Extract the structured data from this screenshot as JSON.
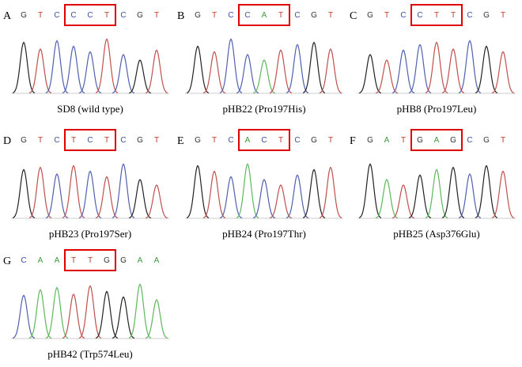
{
  "panels": [
    {
      "letter": "A",
      "bases": [
        "G",
        "T",
        "C",
        "C",
        "C",
        "T",
        "C",
        "G",
        "T"
      ],
      "caption": "SD8 (wild type)"
    },
    {
      "letter": "B",
      "bases": [
        "G",
        "T",
        "C",
        "C",
        "A",
        "T",
        "C",
        "G",
        "T"
      ],
      "caption": "pHB22 (Pro197His)"
    },
    {
      "letter": "C",
      "bases": [
        "G",
        "T",
        "C",
        "C",
        "T",
        "T",
        "C",
        "G",
        "T"
      ],
      "caption": "pHB8 (Pro197Leu)"
    },
    {
      "letter": "D",
      "bases": [
        "G",
        "T",
        "C",
        "T",
        "C",
        "T",
        "C",
        "G",
        "T"
      ],
      "caption": "pHB23 (Pro197Ser)"
    },
    {
      "letter": "E",
      "bases": [
        "G",
        "T",
        "C",
        "A",
        "C",
        "T",
        "C",
        "G",
        "T"
      ],
      "caption": "pHB24 (Pro197Thr)"
    },
    {
      "letter": "F",
      "bases": [
        "G",
        "A",
        "T",
        "G",
        "A",
        "G",
        "C",
        "G",
        "T"
      ],
      "caption": "pHB25 (Asp376Glu)"
    },
    {
      "letter": "G",
      "bases": [
        "C",
        "A",
        "A",
        "T",
        "T",
        "G",
        "G",
        "A",
        "A"
      ],
      "caption": "pHB42 (Trp574Leu)"
    }
  ]
}
